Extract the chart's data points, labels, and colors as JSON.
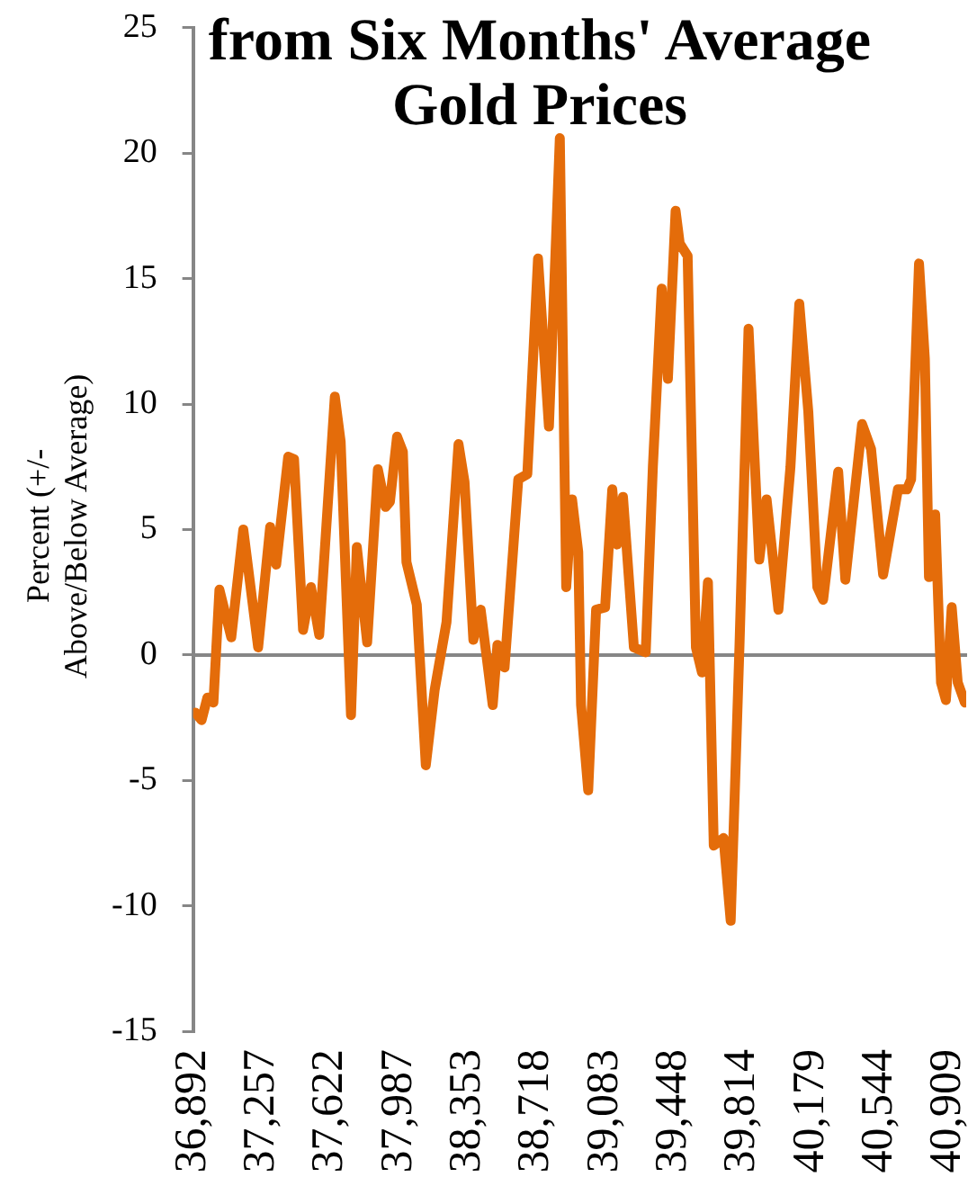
{
  "chart_data": {
    "type": "line",
    "title": "from Six Months' Average Gold Prices",
    "ylabel": "Percent (+/- Above/Below Average)",
    "x": [
      36904,
      36937,
      36968,
      37000,
      37032,
      37095,
      37159,
      37238,
      37302,
      37334,
      37398,
      37429,
      37477,
      37519,
      37563,
      37646,
      37677,
      37732,
      37763,
      37818,
      37875,
      37916,
      37939,
      37977,
      38008,
      38027,
      38082,
      38130,
      38177,
      38240,
      38304,
      38336,
      38383,
      38422,
      38486,
      38511,
      38549,
      38622,
      38670,
      38727,
      38785,
      38843,
      38877,
      38908,
      38941,
      38956,
      38994,
      39036,
      39084,
      39122,
      39147,
      39179,
      39237,
      39300,
      39338,
      39385,
      39418,
      39459,
      39481,
      39523,
      39567,
      39599,
      39631,
      39662,
      39714,
      39752,
      39799,
      39847,
      39904,
      39943,
      40006,
      40070,
      40117,
      40165,
      40213,
      40244,
      40324,
      40362,
      40451,
      40499,
      40563,
      40642,
      40690,
      40712,
      40754,
      40785,
      40807,
      40840,
      40871,
      40897,
      40928,
      40960,
      40998
    ],
    "series": [
      {
        "color": "#e46c0a",
        "values": [
          -2.3,
          -2.6,
          -1.7,
          -1.9,
          2.6,
          0.7,
          5.0,
          0.3,
          5.1,
          3.6,
          7.9,
          7.8,
          1.0,
          2.7,
          0.8,
          10.3,
          8.5,
          -2.4,
          4.3,
          0.5,
          7.4,
          5.9,
          6.1,
          8.7,
          8.1,
          3.7,
          2.0,
          -4.4,
          -1.4,
          1.3,
          8.4,
          6.9,
          0.6,
          1.8,
          -2.0,
          0.4,
          -0.5,
          7.0,
          7.2,
          15.8,
          9.1,
          20.6,
          2.7,
          6.2,
          4.1,
          -2.0,
          -5.4,
          1.8,
          1.9,
          6.6,
          4.4,
          6.3,
          0.3,
          0.1,
          7.5,
          14.6,
          11.0,
          17.7,
          16.4,
          15.9,
          0.3,
          -0.7,
          2.9,
          -7.6,
          -7.3,
          -10.6,
          0.4,
          13.0,
          3.8,
          6.2,
          1.8,
          7.5,
          14.0,
          9.7,
          2.7,
          2.2,
          7.3,
          3.0,
          9.2,
          8.2,
          3.2,
          6.6,
          6.6,
          7.0,
          15.6,
          11.8,
          3.1,
          5.6,
          -1.1,
          -1.8,
          1.9,
          -1.1,
          -1.9
        ]
      }
    ],
    "xlim": [
      36892,
      41005
    ],
    "xticks": [
      {
        "value": 36892,
        "label": "36,892"
      },
      {
        "value": 37257,
        "label": "37,257"
      },
      {
        "value": 37622,
        "label": "37,622"
      },
      {
        "value": 37987,
        "label": "37,987"
      },
      {
        "value": 38353,
        "label": "38,353"
      },
      {
        "value": 38718,
        "label": "38,718"
      },
      {
        "value": 39083,
        "label": "39,083"
      },
      {
        "value": 39448,
        "label": "39,448"
      },
      {
        "value": 39814,
        "label": "39,814"
      },
      {
        "value": 40179,
        "label": "40,179"
      },
      {
        "value": 40544,
        "label": "40,544"
      },
      {
        "value": 40909,
        "label": "40,909"
      }
    ],
    "ylim": [
      -15,
      25
    ],
    "yticks": [
      -15,
      -10,
      -5,
      0,
      5,
      10,
      15,
      20,
      25
    ],
    "legend": false,
    "marker": "none",
    "line_style": "solid"
  }
}
